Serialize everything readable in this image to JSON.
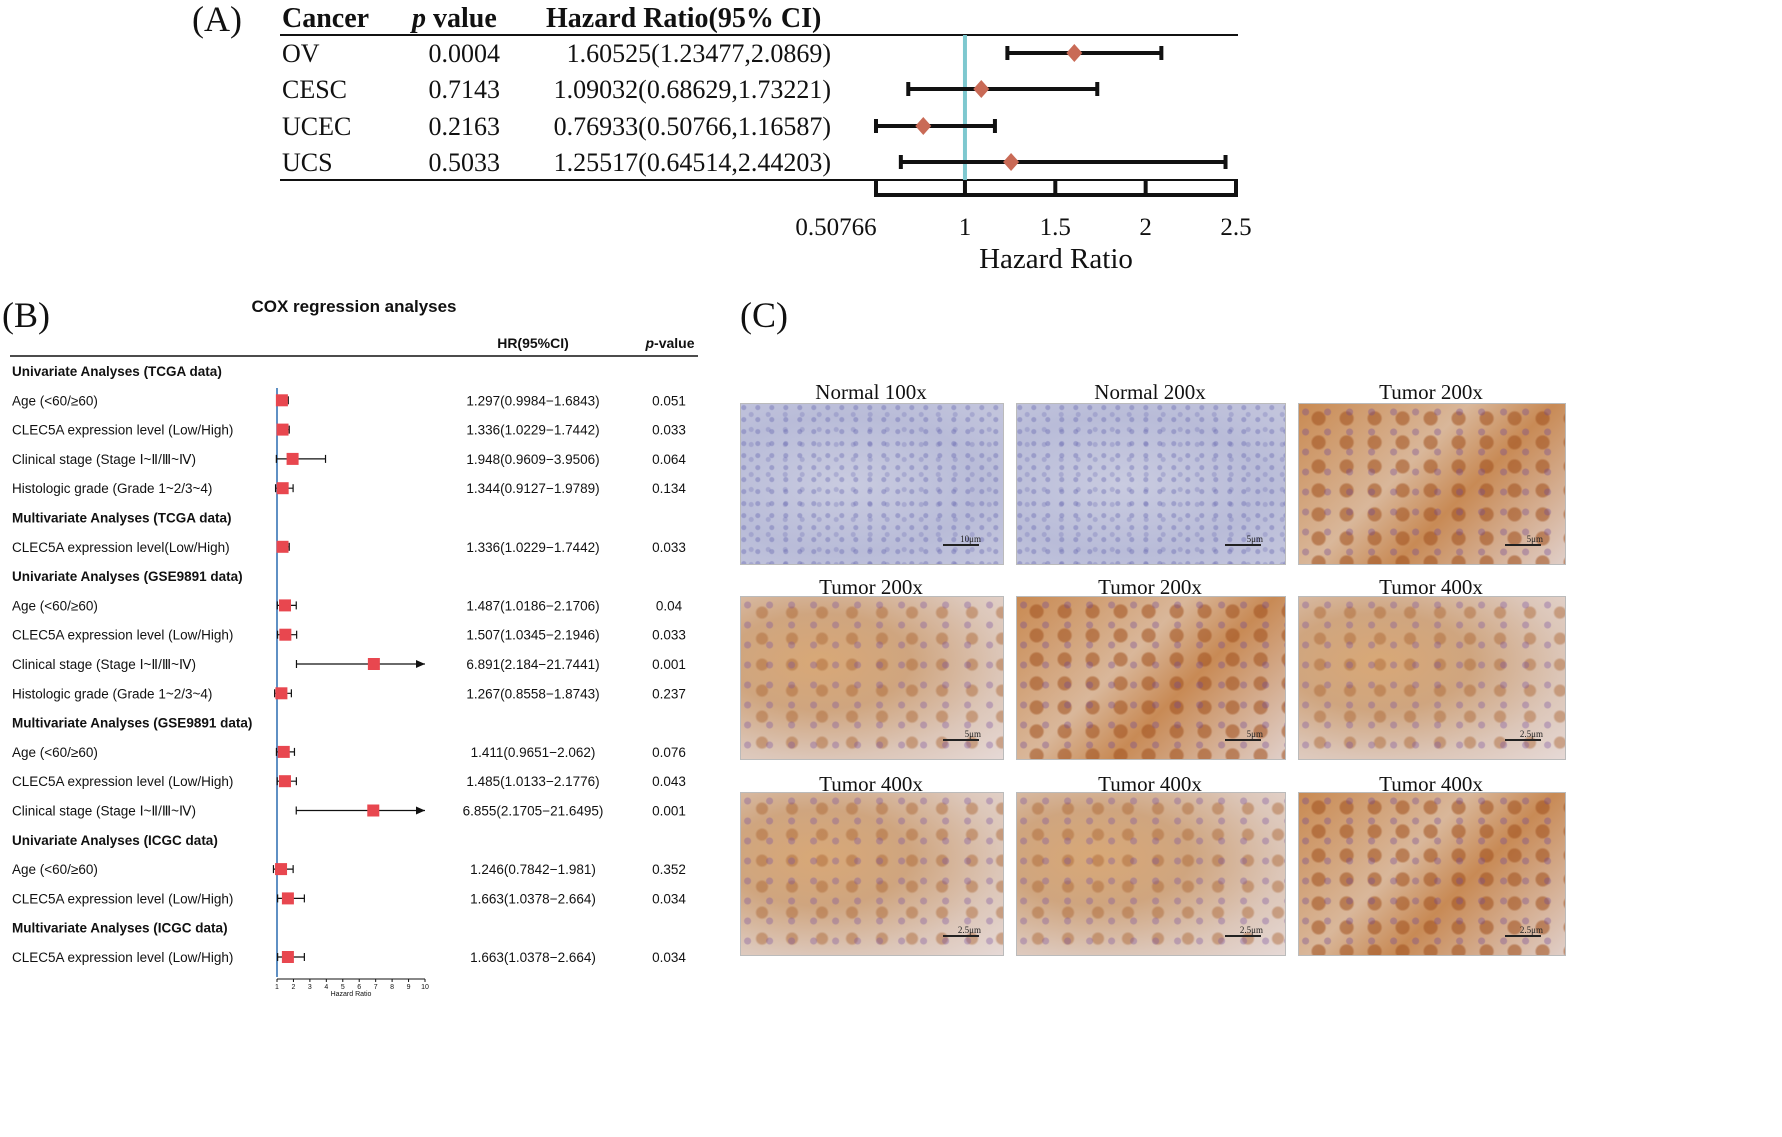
{
  "panelA": {
    "label": "(A)",
    "headers": {
      "cancer": "Cancer",
      "p": "p",
      "p_suffix": " value",
      "hr": "Hazard Ratio(95% CI)"
    },
    "rows": [
      {
        "cancer": "OV",
        "p": "0.0004",
        "hr_text": "1.60525(1.23477,2.0869)",
        "hr": 1.60525,
        "lo": 1.23477,
        "hi": 2.0869
      },
      {
        "cancer": "CESC",
        "p": "0.7143",
        "hr_text": "1.09032(0.68629,1.73221)",
        "hr": 1.09032,
        "lo": 0.68629,
        "hi": 1.73221
      },
      {
        "cancer": "UCEC",
        "p": "0.2163",
        "hr_text": "0.76933(0.50766,1.16587)",
        "hr": 0.76933,
        "lo": 0.50766,
        "hi": 1.16587
      },
      {
        "cancer": "UCS",
        "p": "0.5033",
        "hr_text": "1.25517(0.64514,2.44203)",
        "hr": 1.25517,
        "lo": 0.64514,
        "hi": 2.44203
      }
    ],
    "axis_ticks": [
      "0.50766",
      "1",
      "1.5",
      "2",
      "2.5"
    ],
    "axis_tick_values": [
      0.50766,
      1,
      1.5,
      2,
      2.5
    ],
    "xlabel": "Hazard Ratio",
    "ref_line_color": "#7ec8cf",
    "marker_color": "#c96a56"
  },
  "panelB": {
    "label": "(B)",
    "title": "COX regression analyses",
    "col_hr": "HR(95%CI)",
    "col_p": "p",
    "col_p_suffix": "-value",
    "xlabel": "Hazard Ratio",
    "axis_ticks": [
      "1",
      "2",
      "3",
      "4",
      "5",
      "6",
      "7",
      "8",
      "9",
      "10"
    ],
    "marker_color": "#e8474f",
    "ref_line_color": "#2a6bb0",
    "rows": [
      {
        "type": "header",
        "label": "Univariate Analyses (TCGA data)"
      },
      {
        "type": "data",
        "label": "Age (<60/≥60)",
        "hr_text": "1.297(0.9984−1.6843)",
        "p": "0.051",
        "hr": 1.297,
        "lo": 0.9984,
        "hi": 1.6843
      },
      {
        "type": "data",
        "label": "CLEC5A expression level (Low/High)",
        "hr_text": "1.336(1.0229−1.7442)",
        "p": "0.033",
        "hr": 1.336,
        "lo": 1.0229,
        "hi": 1.7442
      },
      {
        "type": "data",
        "label": "Clinical stage (Stage Ⅰ~Ⅱ/Ⅲ~Ⅳ)",
        "hr_text": "1.948(0.9609−3.9506)",
        "p": "0.064",
        "hr": 1.948,
        "lo": 0.9609,
        "hi": 3.9506
      },
      {
        "type": "data",
        "label": "Histologic grade (Grade 1~2/3~4)",
        "hr_text": "1.344(0.9127−1.9789)",
        "p": "0.134",
        "hr": 1.344,
        "lo": 0.9127,
        "hi": 1.9789
      },
      {
        "type": "header",
        "label": "Multivariate Analyses (TCGA data)"
      },
      {
        "type": "data",
        "label": "CLEC5A expression level(Low/High)",
        "hr_text": "1.336(1.0229−1.7442)",
        "p": "0.033",
        "hr": 1.336,
        "lo": 1.0229,
        "hi": 1.7442
      },
      {
        "type": "header",
        "label": "Univariate Analyses (GSE9891 data)"
      },
      {
        "type": "data",
        "label": "Age (<60/≥60)",
        "hr_text": "1.487(1.0186−2.1706)",
        "p": "0.04",
        "hr": 1.487,
        "lo": 1.0186,
        "hi": 2.1706
      },
      {
        "type": "data",
        "label": "CLEC5A expression level (Low/High)",
        "hr_text": "1.507(1.0345−2.1946)",
        "p": "0.033",
        "hr": 1.507,
        "lo": 1.0345,
        "hi": 2.1946
      },
      {
        "type": "data",
        "label": "Clinical stage (Stage Ⅰ~Ⅱ/Ⅲ~Ⅳ)",
        "hr_text": "6.891(2.184−21.7441)",
        "p": "0.001",
        "hr": 6.891,
        "lo": 2.184,
        "hi": 21.7441
      },
      {
        "type": "data",
        "label": "Histologic grade (Grade 1~2/3~4)",
        "hr_text": "1.267(0.8558−1.8743)",
        "p": "0.237",
        "hr": 1.267,
        "lo": 0.8558,
        "hi": 1.8743
      },
      {
        "type": "header",
        "label": "Multivariate Analyses (GSE9891 data)"
      },
      {
        "type": "data",
        "label": "Age (<60/≥60)",
        "hr_text": "1.411(0.9651−2.062)",
        "p": "0.076",
        "hr": 1.411,
        "lo": 0.9651,
        "hi": 2.062
      },
      {
        "type": "data",
        "label": "CLEC5A expression level (Low/High)",
        "hr_text": "1.485(1.0133−2.1776)",
        "p": "0.043",
        "hr": 1.485,
        "lo": 1.0133,
        "hi": 2.1776
      },
      {
        "type": "data",
        "label": "Clinical stage (Stage Ⅰ~Ⅱ/Ⅲ~Ⅳ)",
        "hr_text": "6.855(2.1705−21.6495)",
        "p": "0.001",
        "hr": 6.855,
        "lo": 2.1705,
        "hi": 21.6495
      },
      {
        "type": "header",
        "label": "Univariate Analyses (ICGC data)"
      },
      {
        "type": "data",
        "label": "Age (<60/≥60)",
        "hr_text": "1.246(0.7842−1.981)",
        "p": "0.352",
        "hr": 1.246,
        "lo": 0.7842,
        "hi": 1.981
      },
      {
        "type": "data",
        "label": "CLEC5A expression level (Low/High)",
        "hr_text": "1.663(1.0378−2.664)",
        "p": "0.034",
        "hr": 1.663,
        "lo": 1.0378,
        "hi": 2.664
      },
      {
        "type": "header",
        "label": "Multivariate Analyses (ICGC data)"
      },
      {
        "type": "data",
        "label": "CLEC5A expression level (Low/High)",
        "hr_text": "1.663(1.0378−2.664)",
        "p": "0.034",
        "hr": 1.663,
        "lo": 1.0378,
        "hi": 2.664
      }
    ]
  },
  "panelC": {
    "label": "(C)",
    "images": [
      {
        "title": "Normal  100x",
        "scale": "10μm",
        "kind": "normal"
      },
      {
        "title": "Normal  200x",
        "scale": "5μm",
        "kind": "normal"
      },
      {
        "title": "Tumor 200x",
        "scale": "5μm",
        "kind": "tumor-dark"
      },
      {
        "title": "Tumor 200x",
        "scale": "5μm",
        "kind": "tumor"
      },
      {
        "title": "Tumor 200x",
        "scale": "5μm",
        "kind": "tumor-dark"
      },
      {
        "title": "Tumor 400x",
        "scale": "2.5μm",
        "kind": "tumor"
      },
      {
        "title": "Tumor 400x",
        "scale": "2.5μm",
        "kind": "tumor"
      },
      {
        "title": "Tumor 400x",
        "scale": "2.5μm",
        "kind": "tumor"
      },
      {
        "title": "Tumor 400x",
        "scale": "2.5μm",
        "kind": "tumor-dark"
      }
    ]
  },
  "chart_data": [
    {
      "type": "scatter",
      "title": "",
      "xlabel": "Hazard Ratio",
      "ylabel": "",
      "categories": [
        "OV",
        "CESC",
        "UCEC",
        "UCS"
      ],
      "values": [
        1.60525,
        1.09032,
        0.76933,
        1.25517
      ],
      "ci_low": [
        1.23477,
        0.68629,
        0.50766,
        0.64514
      ],
      "ci_high": [
        2.0869,
        1.73221,
        1.16587,
        2.44203
      ],
      "xlim": [
        0.50766,
        2.5
      ],
      "reference_line": 1
    },
    {
      "type": "scatter",
      "title": "COX regression analyses",
      "xlabel": "Hazard Ratio",
      "ylabel": "",
      "xlim": [
        1,
        10
      ],
      "reference_line": 1,
      "values": [
        1.297,
        1.336,
        1.948,
        1.344,
        1.336,
        1.487,
        1.507,
        6.891,
        1.267,
        1.411,
        1.485,
        6.855,
        1.246,
        1.663,
        1.663
      ]
    }
  ]
}
